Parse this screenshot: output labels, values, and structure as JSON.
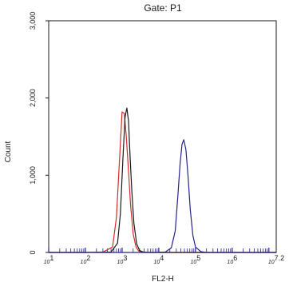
{
  "chart_data": {
    "type": "line",
    "title": "Gate: P1",
    "xlabel": "FL2-H",
    "ylabel": "Count",
    "x_scale": "log",
    "xlim": [
      10,
      15848932
    ],
    "ylim": [
      0,
      3000
    ],
    "grid": false,
    "legend": "none",
    "x_tick_labels": [
      "10^1",
      "10^2",
      "10^3",
      "10^4",
      "10^5",
      "10^6",
      "10^7.2"
    ],
    "y_tick_labels": [
      "0",
      "1,000",
      "2,000",
      "3,000"
    ],
    "series": [
      {
        "color": "#d42a2a",
        "x": [
          10,
          100,
          300,
          550,
          700,
          850,
          1000,
          1150,
          1300,
          1500,
          1700,
          2000,
          2400,
          2800,
          3500,
          5000,
          10000,
          15848932
        ],
        "values": [
          0,
          0,
          5,
          70,
          450,
          1200,
          1820,
          1800,
          1500,
          1050,
          620,
          240,
          70,
          20,
          5,
          0,
          0,
          0
        ]
      },
      {
        "color": "#1a1a1a",
        "x": [
          10,
          100,
          500,
          750,
          900,
          1050,
          1200,
          1350,
          1500,
          1650,
          1850,
          2100,
          2500,
          3000,
          3800,
          6000,
          15848932
        ],
        "values": [
          0,
          0,
          5,
          120,
          500,
          1200,
          1750,
          1870,
          1700,
          1250,
          780,
          380,
          110,
          25,
          5,
          0,
          0
        ]
      },
      {
        "color": "#23238e",
        "x": [
          10,
          1000,
          8000,
          15000,
          22000,
          28000,
          33000,
          38000,
          43000,
          48000,
          55000,
          63000,
          72000,
          85000,
          100000,
          140000,
          200000,
          15848932
        ],
        "values": [
          0,
          0,
          0,
          5,
          60,
          280,
          720,
          1150,
          1400,
          1460,
          1330,
          980,
          560,
          220,
          70,
          10,
          0,
          0
        ]
      }
    ]
  }
}
